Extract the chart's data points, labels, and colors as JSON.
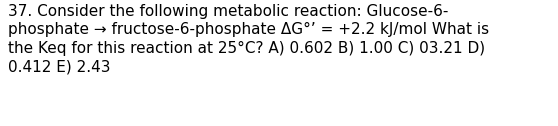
{
  "line1": "37. Consider the following metabolic reaction: Glucose-6-",
  "line2": "phosphate → fructose-6-phosphate ΔG°’ = +2.2 kJ/mol What is",
  "line3": "the Keq for this reaction at 25°C? A) 0.602 B) 1.00 C) 03.21 D)",
  "line4": "0.412 E) 2.43",
  "font_size": 11.0,
  "font_color": "#000000",
  "background_color": "#ffffff",
  "fig_width": 5.58,
  "fig_height": 1.26,
  "dpi": 100
}
